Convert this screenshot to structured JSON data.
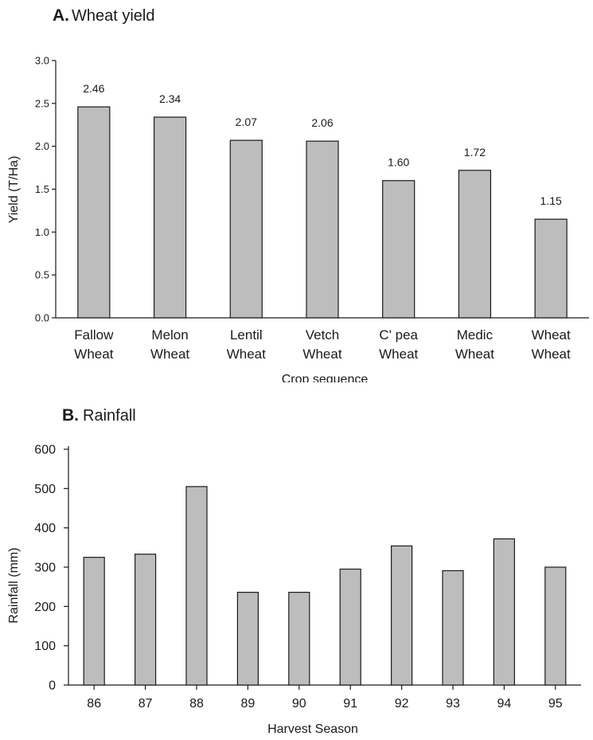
{
  "chart_data": [
    {
      "type": "bar",
      "panel_letter": "A.",
      "title": "Wheat yield",
      "categories": [
        [
          "Fallow",
          "Wheat"
        ],
        [
          "Melon",
          "Wheat"
        ],
        [
          "Lentil",
          "Wheat"
        ],
        [
          "Vetch",
          "Wheat"
        ],
        [
          "C' pea",
          "Wheat"
        ],
        [
          "Medic",
          "Wheat"
        ],
        [
          "Wheat",
          "Wheat"
        ]
      ],
      "values": [
        2.46,
        2.34,
        2.07,
        2.06,
        1.6,
        1.72,
        1.15
      ],
      "data_labels": [
        "2.46",
        "2.34",
        "2.07",
        "2.06",
        "1.60",
        "1.72",
        "1.15"
      ],
      "xlabel": "Crop sequence",
      "ylabel": "Yield (T/Ha)",
      "ylim": [
        0,
        3.0
      ],
      "yticks": [
        "0.0",
        "0.5",
        "1.0",
        "1.5",
        "2.0",
        "2.5",
        "3.0"
      ],
      "grid": false
    },
    {
      "type": "bar",
      "panel_letter": "B.",
      "title": "Rainfall",
      "categories": [
        "86",
        "87",
        "88",
        "89",
        "90",
        "91",
        "92",
        "93",
        "94",
        "95"
      ],
      "values": [
        325,
        333,
        505,
        236,
        236,
        295,
        354,
        291,
        372,
        300
      ],
      "xlabel": "Harvest Season",
      "ylabel": "Rainfall (mm)",
      "ylim": [
        0,
        600
      ],
      "yticks": [
        "0",
        "100",
        "200",
        "300",
        "400",
        "500",
        "600"
      ],
      "grid": false
    }
  ]
}
